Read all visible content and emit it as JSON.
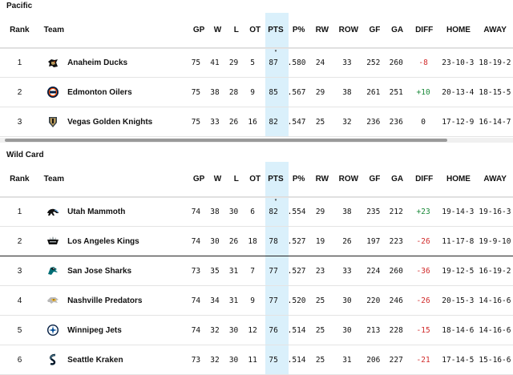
{
  "columns": [
    "Rank",
    "Team",
    "GP",
    "W",
    "L",
    "OT",
    "PTS",
    "P%",
    "RW",
    "ROW",
    "GF",
    "GA",
    "DIFF",
    "HOME",
    "AWAY"
  ],
  "sort_indicator": "▾",
  "colors": {
    "pts_column_bg": "#daf0fb",
    "positive": "#1b8a3a",
    "negative": "#d12c2c"
  },
  "pacific": {
    "title": "Pacific",
    "rows": [
      {
        "rank": "1",
        "team": "Anaheim Ducks",
        "logo": "ducks-logo-icon",
        "gp": "75",
        "w": "41",
        "l": "29",
        "ot": "5",
        "pts": "87",
        "pct": ".580",
        "rw": "24",
        "row": "33",
        "gf": "252",
        "ga": "260",
        "diff": "-8",
        "home": "23-10-3",
        "away": "18-19-2"
      },
      {
        "rank": "2",
        "team": "Edmonton Oilers",
        "logo": "oilers-logo-icon",
        "gp": "75",
        "w": "38",
        "l": "28",
        "ot": "9",
        "pts": "85",
        "pct": ".567",
        "rw": "29",
        "row": "38",
        "gf": "261",
        "ga": "251",
        "diff": "+10",
        "home": "20-13-4",
        "away": "18-15-5"
      },
      {
        "rank": "3",
        "team": "Vegas Golden Knights",
        "logo": "golden-knights-logo-icon",
        "gp": "75",
        "w": "33",
        "l": "26",
        "ot": "16",
        "pts": "82",
        "pct": ".547",
        "rw": "25",
        "row": "32",
        "gf": "236",
        "ga": "236",
        "diff": "0",
        "home": "17-12-9",
        "away": "16-14-7"
      }
    ]
  },
  "wildcard": {
    "title": "Wild Card",
    "rows": [
      {
        "rank": "1",
        "team": "Utah Mammoth",
        "logo": "mammoth-logo-icon",
        "gp": "74",
        "w": "38",
        "l": "30",
        "ot": "6",
        "pts": "82",
        "pct": ".554",
        "rw": "29",
        "row": "38",
        "gf": "235",
        "ga": "212",
        "diff": "+23",
        "home": "19-14-3",
        "away": "19-16-3"
      },
      {
        "rank": "2",
        "team": "Los Angeles Kings",
        "logo": "kings-logo-icon",
        "gp": "74",
        "w": "30",
        "l": "26",
        "ot": "18",
        "pts": "78",
        "pct": ".527",
        "rw": "19",
        "row": "26",
        "gf": "197",
        "ga": "223",
        "diff": "-26",
        "home": "11-17-8",
        "away": "19-9-10"
      },
      {
        "rank": "3",
        "team": "San Jose Sharks",
        "logo": "sharks-logo-icon",
        "gp": "73",
        "w": "35",
        "l": "31",
        "ot": "7",
        "pts": "77",
        "pct": ".527",
        "rw": "23",
        "row": "33",
        "gf": "224",
        "ga": "260",
        "diff": "-36",
        "home": "19-12-5",
        "away": "16-19-2"
      },
      {
        "rank": "4",
        "team": "Nashville Predators",
        "logo": "predators-logo-icon",
        "gp": "74",
        "w": "34",
        "l": "31",
        "ot": "9",
        "pts": "77",
        "pct": ".520",
        "rw": "25",
        "row": "30",
        "gf": "220",
        "ga": "246",
        "diff": "-26",
        "home": "20-15-3",
        "away": "14-16-6"
      },
      {
        "rank": "5",
        "team": "Winnipeg Jets",
        "logo": "jets-logo-icon",
        "gp": "74",
        "w": "32",
        "l": "30",
        "ot": "12",
        "pts": "76",
        "pct": ".514",
        "rw": "25",
        "row": "30",
        "gf": "213",
        "ga": "228",
        "diff": "-15",
        "home": "18-14-6",
        "away": "14-16-6"
      },
      {
        "rank": "6",
        "team": "Seattle Kraken",
        "logo": "kraken-logo-icon",
        "gp": "73",
        "w": "32",
        "l": "30",
        "ot": "11",
        "pts": "75",
        "pct": ".514",
        "rw": "25",
        "row": "31",
        "gf": "206",
        "ga": "227",
        "diff": "-21",
        "home": "17-14-5",
        "away": "15-16-6"
      }
    ]
  }
}
